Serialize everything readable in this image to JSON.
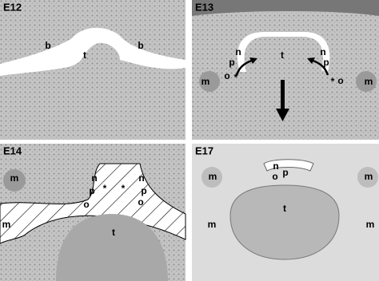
{
  "panels": [
    {
      "label": "E12",
      "annotations": [
        "b",
        "t",
        "b"
      ]
    },
    {
      "label": "E13",
      "annotations": [
        "t",
        "n",
        "p",
        "o",
        "*",
        "n",
        "p",
        "*",
        "o",
        "m",
        "m"
      ]
    },
    {
      "label": "E14",
      "annotations": [
        "m",
        "m",
        "n",
        "p",
        "o",
        "*",
        "*",
        "n",
        "p",
        "o",
        "t"
      ]
    },
    {
      "label": "E17",
      "annotations": [
        "m",
        "m",
        "n",
        "o",
        "p",
        "t",
        "m",
        "m"
      ]
    }
  ]
}
